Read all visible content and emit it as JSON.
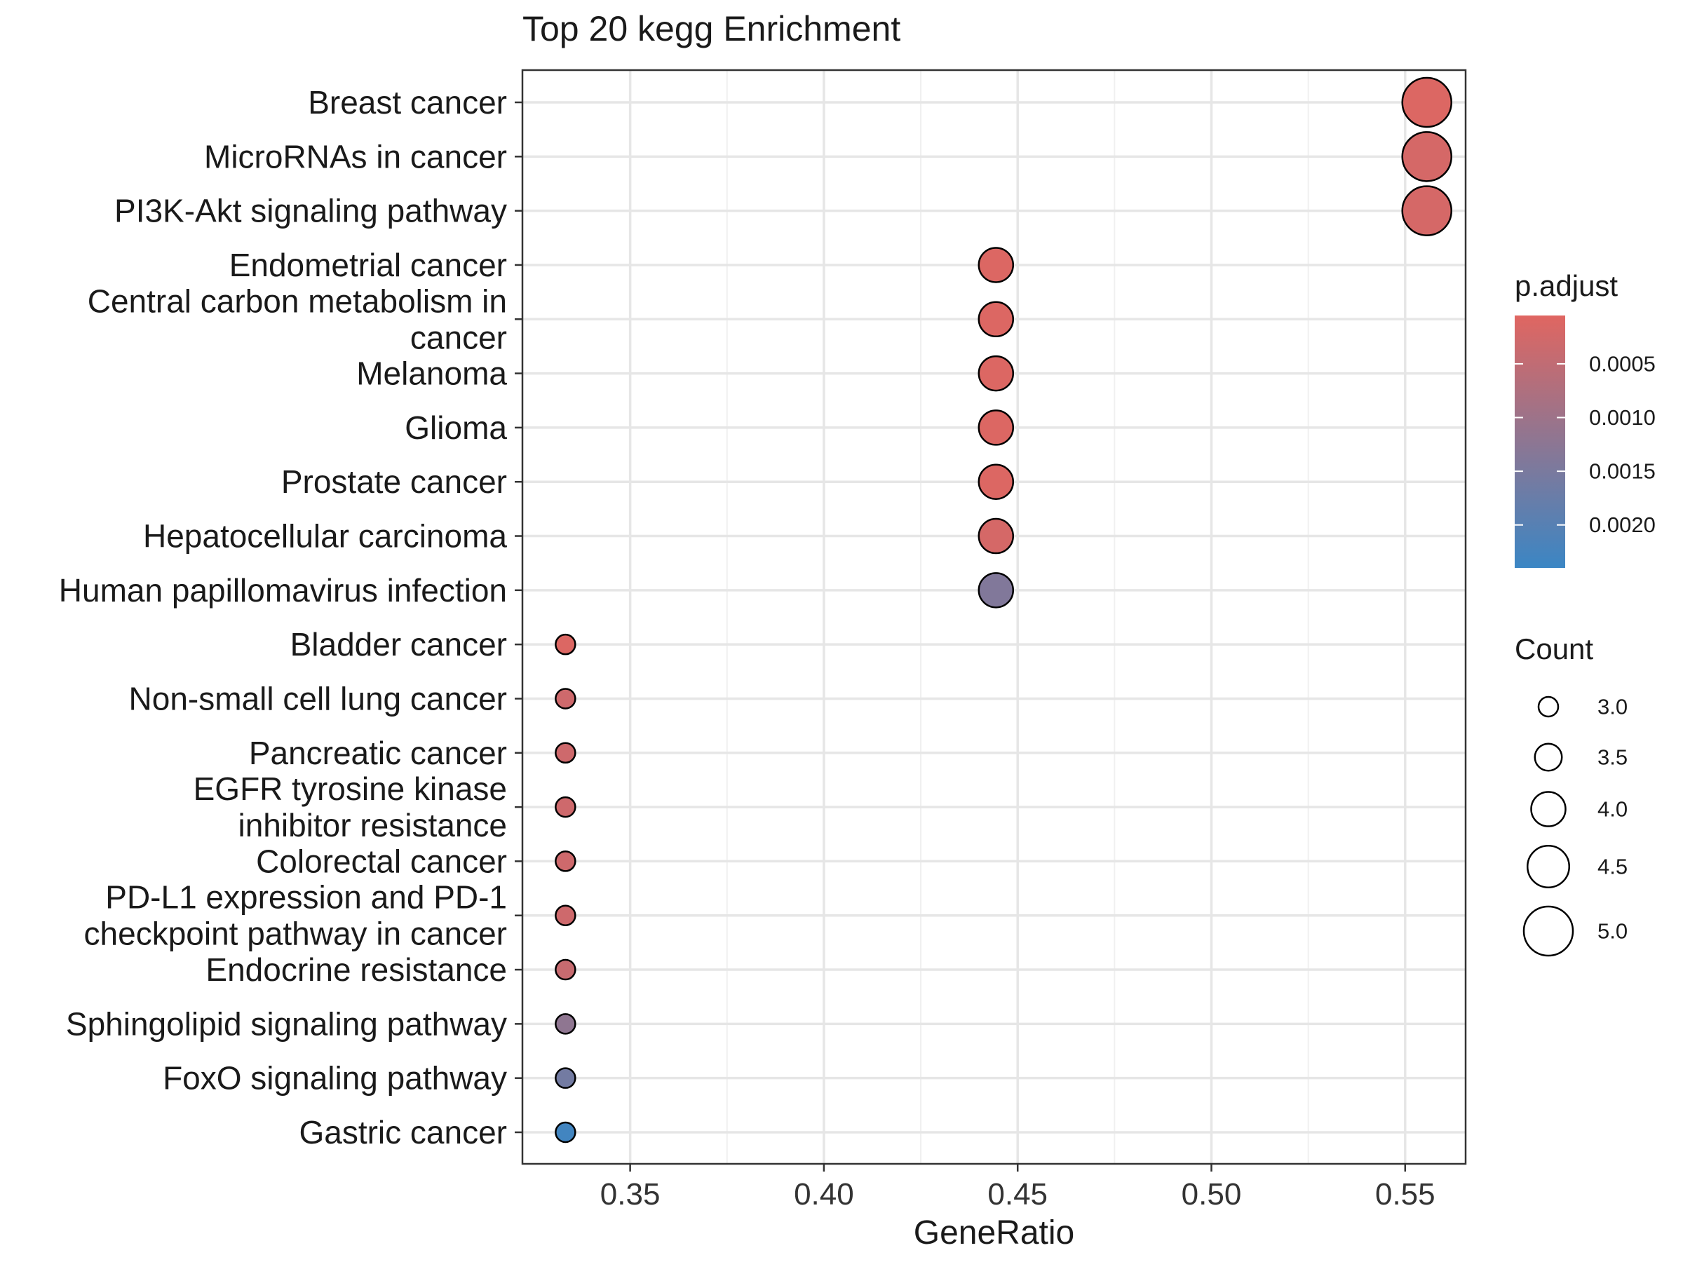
{
  "chart_data": {
    "type": "scatter",
    "title": "Top 20 kegg Enrichment",
    "xlabel": "GeneRatio",
    "ylabel": "",
    "xlim": [
      0.3222,
      0.5656
    ],
    "x_ticks": [
      "0.35",
      "0.40",
      "0.45",
      "0.50",
      "0.55"
    ],
    "x_tick_values": [
      0.35,
      0.4,
      0.45,
      0.5,
      0.55
    ],
    "grid": true,
    "legend_placement": "right",
    "categories": [
      [
        "Breast cancer"
      ],
      [
        "MicroRNAs in cancer"
      ],
      [
        "PI3K-Akt signaling pathway"
      ],
      [
        "Endometrial cancer"
      ],
      [
        "Central carbon metabolism in",
        "cancer"
      ],
      [
        "Melanoma"
      ],
      [
        "Glioma"
      ],
      [
        "Prostate cancer"
      ],
      [
        "Hepatocellular carcinoma"
      ],
      [
        "Human papillomavirus infection"
      ],
      [
        "Bladder cancer"
      ],
      [
        "Non-small cell lung cancer"
      ],
      [
        "Pancreatic cancer"
      ],
      [
        "EGFR tyrosine kinase",
        "inhibitor resistance"
      ],
      [
        "Colorectal cancer"
      ],
      [
        "PD-L1 expression and PD-1",
        "checkpoint pathway in cancer"
      ],
      [
        "Endocrine resistance"
      ],
      [
        "Sphingolipid signaling pathway"
      ],
      [
        "FoxO signaling pathway"
      ],
      [
        "Gastric cancer"
      ]
    ],
    "gene_ratio": [
      0.5556,
      0.5556,
      0.5556,
      0.4444,
      0.4444,
      0.4444,
      0.4444,
      0.4444,
      0.4444,
      0.4444,
      0.3333,
      0.3333,
      0.3333,
      0.3333,
      0.3333,
      0.3333,
      0.3333,
      0.3333,
      0.3333,
      0.3333
    ],
    "count": [
      5,
      5,
      5,
      4,
      4,
      4,
      4,
      4,
      4,
      4,
      3,
      3,
      3,
      3,
      3,
      3,
      3,
      3,
      3,
      3
    ],
    "p_adjust": [
      0.0001,
      0.0002,
      0.0002,
      0.0001,
      0.0001,
      0.0001,
      0.0001,
      0.0001,
      0.0002,
      0.0014,
      0.0001,
      0.0003,
      0.0003,
      0.0003,
      0.0003,
      0.0003,
      0.0004,
      0.0012,
      0.0016,
      0.0023
    ],
    "color_legend": {
      "title": "p.adjust",
      "range": [
        5e-05,
        0.0024
      ],
      "low_color": "#E06661",
      "high_color": "#3B86C4",
      "tick_labels": [
        "0.0005",
        "0.0010",
        "0.0015",
        "0.0020"
      ],
      "tick_values": [
        0.0005,
        0.001,
        0.0015,
        0.002
      ]
    },
    "size_legend": {
      "title": "Count",
      "labels": [
        "3.0",
        "3.5",
        "4.0",
        "4.5",
        "5.0"
      ],
      "values": [
        3.0,
        3.5,
        4.0,
        4.5,
        5.0
      ]
    }
  }
}
